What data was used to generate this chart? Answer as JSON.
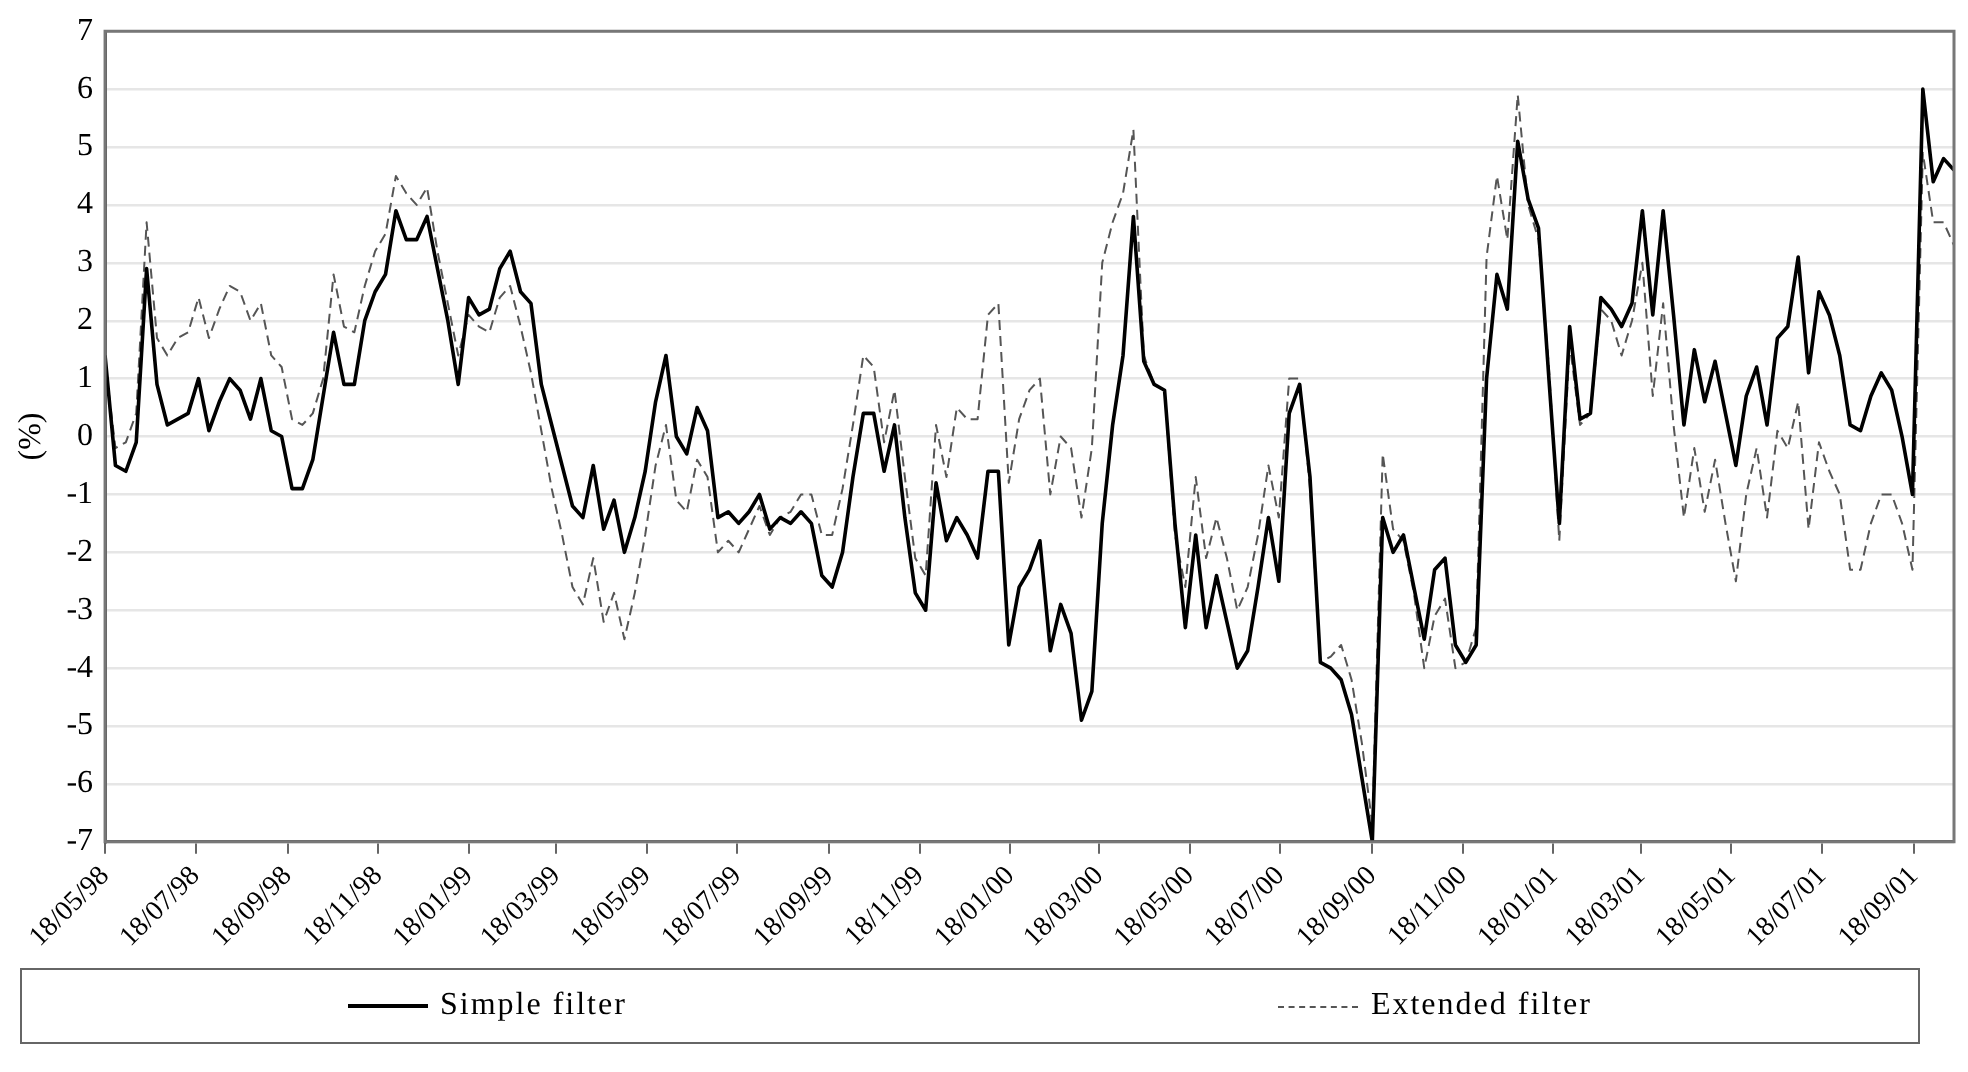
{
  "chart_data": {
    "type": "line",
    "ylabel": "(%)",
    "legend": "bottom",
    "grid": "y",
    "marker": "none",
    "ylim": [
      -7,
      7
    ],
    "yticks": [
      -7,
      -6,
      -5,
      -4,
      -3,
      -2,
      -1,
      0,
      1,
      2,
      3,
      4,
      5,
      6,
      7
    ],
    "xlim": [
      "1998-05-18",
      "2001-10-15"
    ],
    "xticks": [
      {
        "value": "1998-05-18",
        "label": "18/05/98"
      },
      {
        "value": "1998-07-18",
        "label": "18/07/98"
      },
      {
        "value": "1998-09-18",
        "label": "18/09/98"
      },
      {
        "value": "1998-11-18",
        "label": "18/11/98"
      },
      {
        "value": "1999-01-18",
        "label": "18/01/99"
      },
      {
        "value": "1999-03-18",
        "label": "18/03/99"
      },
      {
        "value": "1999-05-18",
        "label": "18/05/99"
      },
      {
        "value": "1999-07-18",
        "label": "18/07/99"
      },
      {
        "value": "1999-09-18",
        "label": "18/09/99"
      },
      {
        "value": "1999-11-18",
        "label": "18/11/99"
      },
      {
        "value": "2000-01-18",
        "label": "18/01/00"
      },
      {
        "value": "2000-03-18",
        "label": "18/03/00"
      },
      {
        "value": "2000-05-18",
        "label": "18/05/00"
      },
      {
        "value": "2000-07-18",
        "label": "18/07/00"
      },
      {
        "value": "2000-09-18",
        "label": "18/09/00"
      },
      {
        "value": "2000-11-18",
        "label": "18/11/00"
      },
      {
        "value": "2001-01-18",
        "label": "18/01/01"
      },
      {
        "value": "2001-03-18",
        "label": "18/03/01"
      },
      {
        "value": "2001-05-18",
        "label": "18/05/01"
      },
      {
        "value": "2001-07-18",
        "label": "18/07/01"
      },
      {
        "value": "2001-09-18",
        "label": "18/09/01"
      }
    ],
    "x": [
      "1998-05-18",
      "1998-05-25",
      "1998-06-01",
      "1998-06-08",
      "1998-06-15",
      "1998-06-22",
      "1998-06-29",
      "1998-07-06",
      "1998-07-13",
      "1998-07-20",
      "1998-07-27",
      "1998-08-03",
      "1998-08-10",
      "1998-08-17",
      "1998-08-24",
      "1998-08-31",
      "1998-09-07",
      "1998-09-14",
      "1998-09-21",
      "1998-09-28",
      "1998-10-05",
      "1998-10-12",
      "1998-10-19",
      "1998-10-26",
      "1998-11-02",
      "1998-11-09",
      "1998-11-16",
      "1998-11-23",
      "1998-11-30",
      "1998-12-07",
      "1998-12-14",
      "1998-12-21",
      "1998-12-28",
      "1999-01-04",
      "1999-01-11",
      "1999-01-18",
      "1999-01-25",
      "1999-02-01",
      "1999-02-08",
      "1999-02-15",
      "1999-02-22",
      "1999-03-01",
      "1999-03-08",
      "1999-03-15",
      "1999-03-22",
      "1999-03-29",
      "1999-04-05",
      "1999-04-12",
      "1999-04-19",
      "1999-04-26",
      "1999-05-03",
      "1999-05-10",
      "1999-05-17",
      "1999-05-24",
      "1999-05-31",
      "1999-06-07",
      "1999-06-14",
      "1999-06-21",
      "1999-06-28",
      "1999-07-05",
      "1999-07-12",
      "1999-07-19",
      "1999-07-26",
      "1999-08-02",
      "1999-08-09",
      "1999-08-16",
      "1999-08-23",
      "1999-08-30",
      "1999-09-06",
      "1999-09-13",
      "1999-09-20",
      "1999-09-27",
      "1999-10-04",
      "1999-10-11",
      "1999-10-18",
      "1999-10-25",
      "1999-11-01",
      "1999-11-08",
      "1999-11-15",
      "1999-11-22",
      "1999-11-29",
      "1999-12-06",
      "1999-12-13",
      "1999-12-20",
      "1999-12-27",
      "2000-01-03",
      "2000-01-10",
      "2000-01-17",
      "2000-01-24",
      "2000-01-31",
      "2000-02-07",
      "2000-02-14",
      "2000-02-21",
      "2000-02-28",
      "2000-03-06",
      "2000-03-13",
      "2000-03-20",
      "2000-03-27",
      "2000-04-03",
      "2000-04-10",
      "2000-04-17",
      "2000-04-24",
      "2000-05-01",
      "2000-05-08",
      "2000-05-15",
      "2000-05-22",
      "2000-05-29",
      "2000-06-05",
      "2000-06-12",
      "2000-06-19",
      "2000-06-26",
      "2000-07-03",
      "2000-07-10",
      "2000-07-17",
      "2000-07-24",
      "2000-07-31",
      "2000-08-07",
      "2000-08-14",
      "2000-08-21",
      "2000-08-28",
      "2000-09-04",
      "2000-09-11",
      "2000-09-18",
      "2000-09-25",
      "2000-10-02",
      "2000-10-09",
      "2000-10-16",
      "2000-10-23",
      "2000-10-30",
      "2000-11-06",
      "2000-11-13",
      "2000-11-20",
      "2000-11-27",
      "2000-12-04",
      "2000-12-11",
      "2000-12-18",
      "2000-12-25",
      "2001-01-01",
      "2001-01-08",
      "2001-01-15",
      "2001-01-22",
      "2001-01-29",
      "2001-02-05",
      "2001-02-12",
      "2001-02-19",
      "2001-02-26",
      "2001-03-05",
      "2001-03-12",
      "2001-03-19",
      "2001-03-26",
      "2001-04-02",
      "2001-04-09",
      "2001-04-16",
      "2001-04-23",
      "2001-04-30",
      "2001-05-07",
      "2001-05-14",
      "2001-05-21",
      "2001-05-28",
      "2001-06-04",
      "2001-06-11",
      "2001-06-18",
      "2001-06-25",
      "2001-07-02",
      "2001-07-09",
      "2001-07-16",
      "2001-07-23",
      "2001-07-30",
      "2001-08-06",
      "2001-08-13",
      "2001-08-20",
      "2001-08-27",
      "2001-09-03",
      "2001-09-10",
      "2001-09-17",
      "2001-09-24",
      "2001-10-01",
      "2001-10-08",
      "2001-10-15"
    ],
    "series": [
      {
        "name": "Simple filter",
        "color": "#000000",
        "line_style": "solid",
        "values": [
          1.4,
          -0.5,
          -0.6,
          -0.1,
          2.9,
          0.9,
          0.2,
          0.3,
          0.4,
          1.0,
          0.1,
          0.6,
          1.0,
          0.8,
          0.3,
          1.0,
          0.1,
          0.0,
          -0.9,
          -0.9,
          -0.4,
          0.7,
          1.8,
          0.9,
          0.9,
          2.0,
          2.5,
          2.8,
          3.9,
          3.4,
          3.4,
          3.8,
          2.9,
          2.0,
          0.9,
          2.4,
          2.1,
          2.2,
          2.9,
          3.2,
          2.5,
          2.3,
          0.9,
          0.2,
          -0.5,
          -1.2,
          -1.4,
          -0.5,
          -1.6,
          -1.1,
          -2.0,
          -1.4,
          -0.6,
          0.6,
          1.4,
          0.0,
          -0.3,
          0.5,
          0.1,
          -1.4,
          -1.3,
          -1.5,
          -1.3,
          -1.0,
          -1.6,
          -1.4,
          -1.5,
          -1.3,
          -1.5,
          -2.4,
          -2.6,
          -2.0,
          -0.7,
          0.4,
          0.4,
          -0.6,
          0.2,
          -1.4,
          -2.7,
          -3.0,
          -0.8,
          -1.8,
          -1.4,
          -1.7,
          -2.1,
          -0.6,
          -0.6,
          -3.6,
          -2.6,
          -2.3,
          -1.8,
          -3.7,
          -2.9,
          -3.4,
          -4.9,
          -4.4,
          -1.5,
          0.2,
          1.4,
          3.8,
          1.3,
          0.9,
          0.8,
          -1.5,
          -3.3,
          -1.7,
          -3.3,
          -2.4,
          -3.2,
          -4.0,
          -3.7,
          -2.6,
          -1.4,
          -2.5,
          0.4,
          0.9,
          -0.7,
          -3.9,
          -4.0,
          -4.2,
          -4.8,
          -5.9,
          -7.0,
          -1.4,
          -2.0,
          -1.7,
          -2.6,
          -3.5,
          -2.3,
          -2.1,
          -3.6,
          -3.9,
          -3.6,
          1.0,
          2.8,
          2.2,
          5.1,
          4.1,
          3.6,
          1.0,
          -1.5,
          1.9,
          0.3,
          0.4,
          2.4,
          2.2,
          1.9,
          2.3,
          3.9,
          2.1,
          3.9,
          2.1,
          0.2,
          1.5,
          0.6,
          1.3,
          0.4,
          -0.5,
          0.7,
          1.2,
          0.2,
          1.7,
          1.9,
          3.1,
          1.1,
          2.5,
          2.1,
          1.4,
          0.2,
          0.1,
          0.7,
          1.1,
          0.8,
          0.0,
          -1.0,
          6.0,
          4.4,
          4.8,
          4.6
        ]
      },
      {
        "name": "Extended filter",
        "color": "#555555",
        "line_style": "dashed",
        "values": [
          1.3,
          -0.2,
          -0.1,
          0.4,
          3.7,
          1.7,
          1.4,
          1.7,
          1.8,
          2.4,
          1.7,
          2.2,
          2.6,
          2.5,
          2.0,
          2.3,
          1.4,
          1.2,
          0.3,
          0.2,
          0.4,
          1.0,
          2.8,
          1.9,
          1.8,
          2.6,
          3.2,
          3.5,
          4.5,
          4.2,
          4.0,
          4.3,
          3.2,
          2.3,
          1.4,
          2.1,
          1.9,
          1.8,
          2.4,
          2.6,
          1.9,
          1.1,
          0.1,
          -0.9,
          -1.7,
          -2.6,
          -2.9,
          -2.1,
          -3.2,
          -2.7,
          -3.5,
          -2.7,
          -1.7,
          -0.5,
          0.2,
          -1.1,
          -1.3,
          -0.4,
          -0.7,
          -2.0,
          -1.8,
          -2.0,
          -1.6,
          -1.2,
          -1.7,
          -1.4,
          -1.3,
          -1.0,
          -1.0,
          -1.7,
          -1.7,
          -0.9,
          0.2,
          1.4,
          1.2,
          -0.1,
          0.8,
          -0.7,
          -2.1,
          -2.4,
          0.2,
          -0.7,
          0.5,
          0.3,
          0.3,
          2.1,
          2.3,
          -0.8,
          0.3,
          0.8,
          1.0,
          -1.0,
          0.0,
          -0.2,
          -1.4,
          -0.2,
          3.0,
          3.7,
          4.2,
          5.3,
          1.4,
          0.9,
          0.8,
          -1.7,
          -2.6,
          -0.7,
          -2.1,
          -1.4,
          -2.1,
          -3.0,
          -2.6,
          -1.7,
          -0.5,
          -1.4,
          1.0,
          1.0,
          -0.9,
          -3.9,
          -3.8,
          -3.6,
          -4.2,
          -5.3,
          -6.7,
          -0.3,
          -1.6,
          -1.8,
          -2.7,
          -4.0,
          -3.1,
          -2.8,
          -4.0,
          -3.9,
          -3.3,
          3.1,
          4.5,
          3.4,
          5.9,
          4.0,
          3.4,
          1.2,
          -1.8,
          1.6,
          0.2,
          0.4,
          2.2,
          2.0,
          1.4,
          2.0,
          3.0,
          0.7,
          2.3,
          0.2,
          -1.4,
          -0.2,
          -1.3,
          -0.4,
          -1.5,
          -2.5,
          -1.0,
          -0.2,
          -1.4,
          0.1,
          -0.2,
          0.6,
          -1.6,
          -0.1,
          -0.6,
          -1.0,
          -2.3,
          -2.3,
          -1.5,
          -1.0,
          -1.0,
          -1.5,
          -2.3,
          4.9,
          3.7,
          3.7,
          3.3
        ]
      }
    ]
  }
}
